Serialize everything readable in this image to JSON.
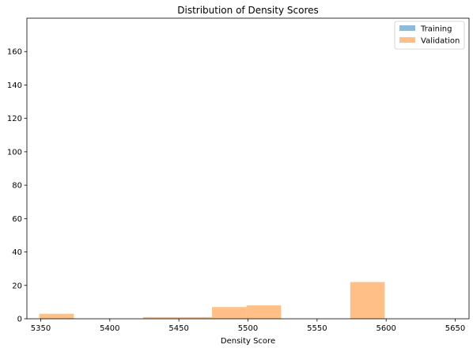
{
  "chart_data": {
    "type": "histogram",
    "title": "Distribution of Density Scores",
    "xlabel": "Density Score",
    "ylabel": "",
    "xlim": [
      5340,
      5660
    ],
    "ylim": [
      0,
      180
    ],
    "x_ticks": [
      5350,
      5400,
      5450,
      5500,
      5550,
      5600,
      5650
    ],
    "y_ticks": [
      0,
      20,
      40,
      60,
      80,
      100,
      120,
      140,
      160
    ],
    "grid": false,
    "legend_position": "top-right",
    "series": [
      {
        "name": "Training",
        "color": "#1f77b4",
        "alpha": 0.5,
        "bins": []
      },
      {
        "name": "Validation",
        "color": "#ff7f0e",
        "alpha": 0.5,
        "bins": [
          {
            "x0": 5349,
            "x1": 5374,
            "count": 3
          },
          {
            "x0": 5374,
            "x1": 5399,
            "count": 0
          },
          {
            "x0": 5399,
            "x1": 5424,
            "count": 0
          },
          {
            "x0": 5424,
            "x1": 5449,
            "count": 1
          },
          {
            "x0": 5449,
            "x1": 5474,
            "count": 1
          },
          {
            "x0": 5474,
            "x1": 5499,
            "count": 7
          },
          {
            "x0": 5499,
            "x1": 5524,
            "count": 8
          },
          {
            "x0": 5524,
            "x1": 5549,
            "count": 0
          },
          {
            "x0": 5549,
            "x1": 5574,
            "count": 0
          },
          {
            "x0": 5574,
            "x1": 5599,
            "count": 22
          },
          {
            "x0": 5599,
            "x1": 5624,
            "count": 0
          }
        ]
      }
    ]
  }
}
